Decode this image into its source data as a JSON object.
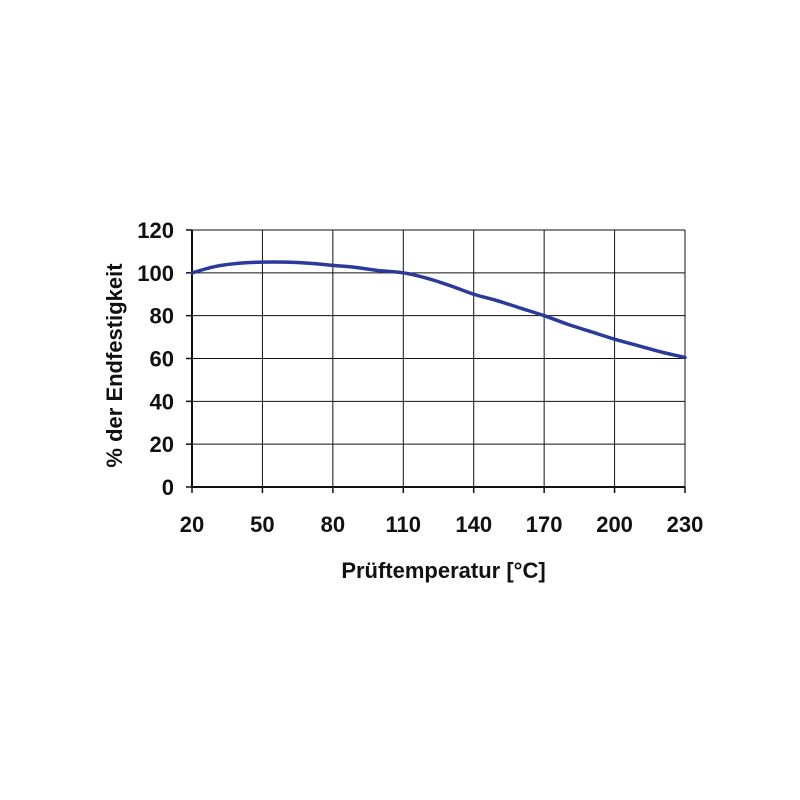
{
  "chart_data": {
    "type": "line",
    "xlabel": "Prüftemperatur [°C]",
    "ylabel": "% der Endfestigkeit",
    "x_ticks": [
      "20",
      "50",
      "80",
      "110",
      "140",
      "170",
      "200",
      "230"
    ],
    "y_ticks": [
      "0",
      "20",
      "40",
      "60",
      "80",
      "100",
      "120"
    ],
    "xlim": [
      20,
      230
    ],
    "ylim": [
      0,
      120
    ],
    "grid": true,
    "legend": "none",
    "series": [
      {
        "color": "#2b3a9a",
        "x": [
          20,
          30,
          40,
          50,
          60,
          70,
          80,
          90,
          100,
          110,
          120,
          130,
          140,
          150,
          160,
          170,
          180,
          190,
          200,
          210,
          220,
          230
        ],
        "y": [
          100,
          103,
          104.5,
          105,
          105,
          104.5,
          103.5,
          102.5,
          101,
          100,
          97.5,
          94,
          90,
          87,
          83.5,
          80,
          76,
          72.5,
          69,
          66,
          63,
          60.5
        ]
      }
    ]
  }
}
